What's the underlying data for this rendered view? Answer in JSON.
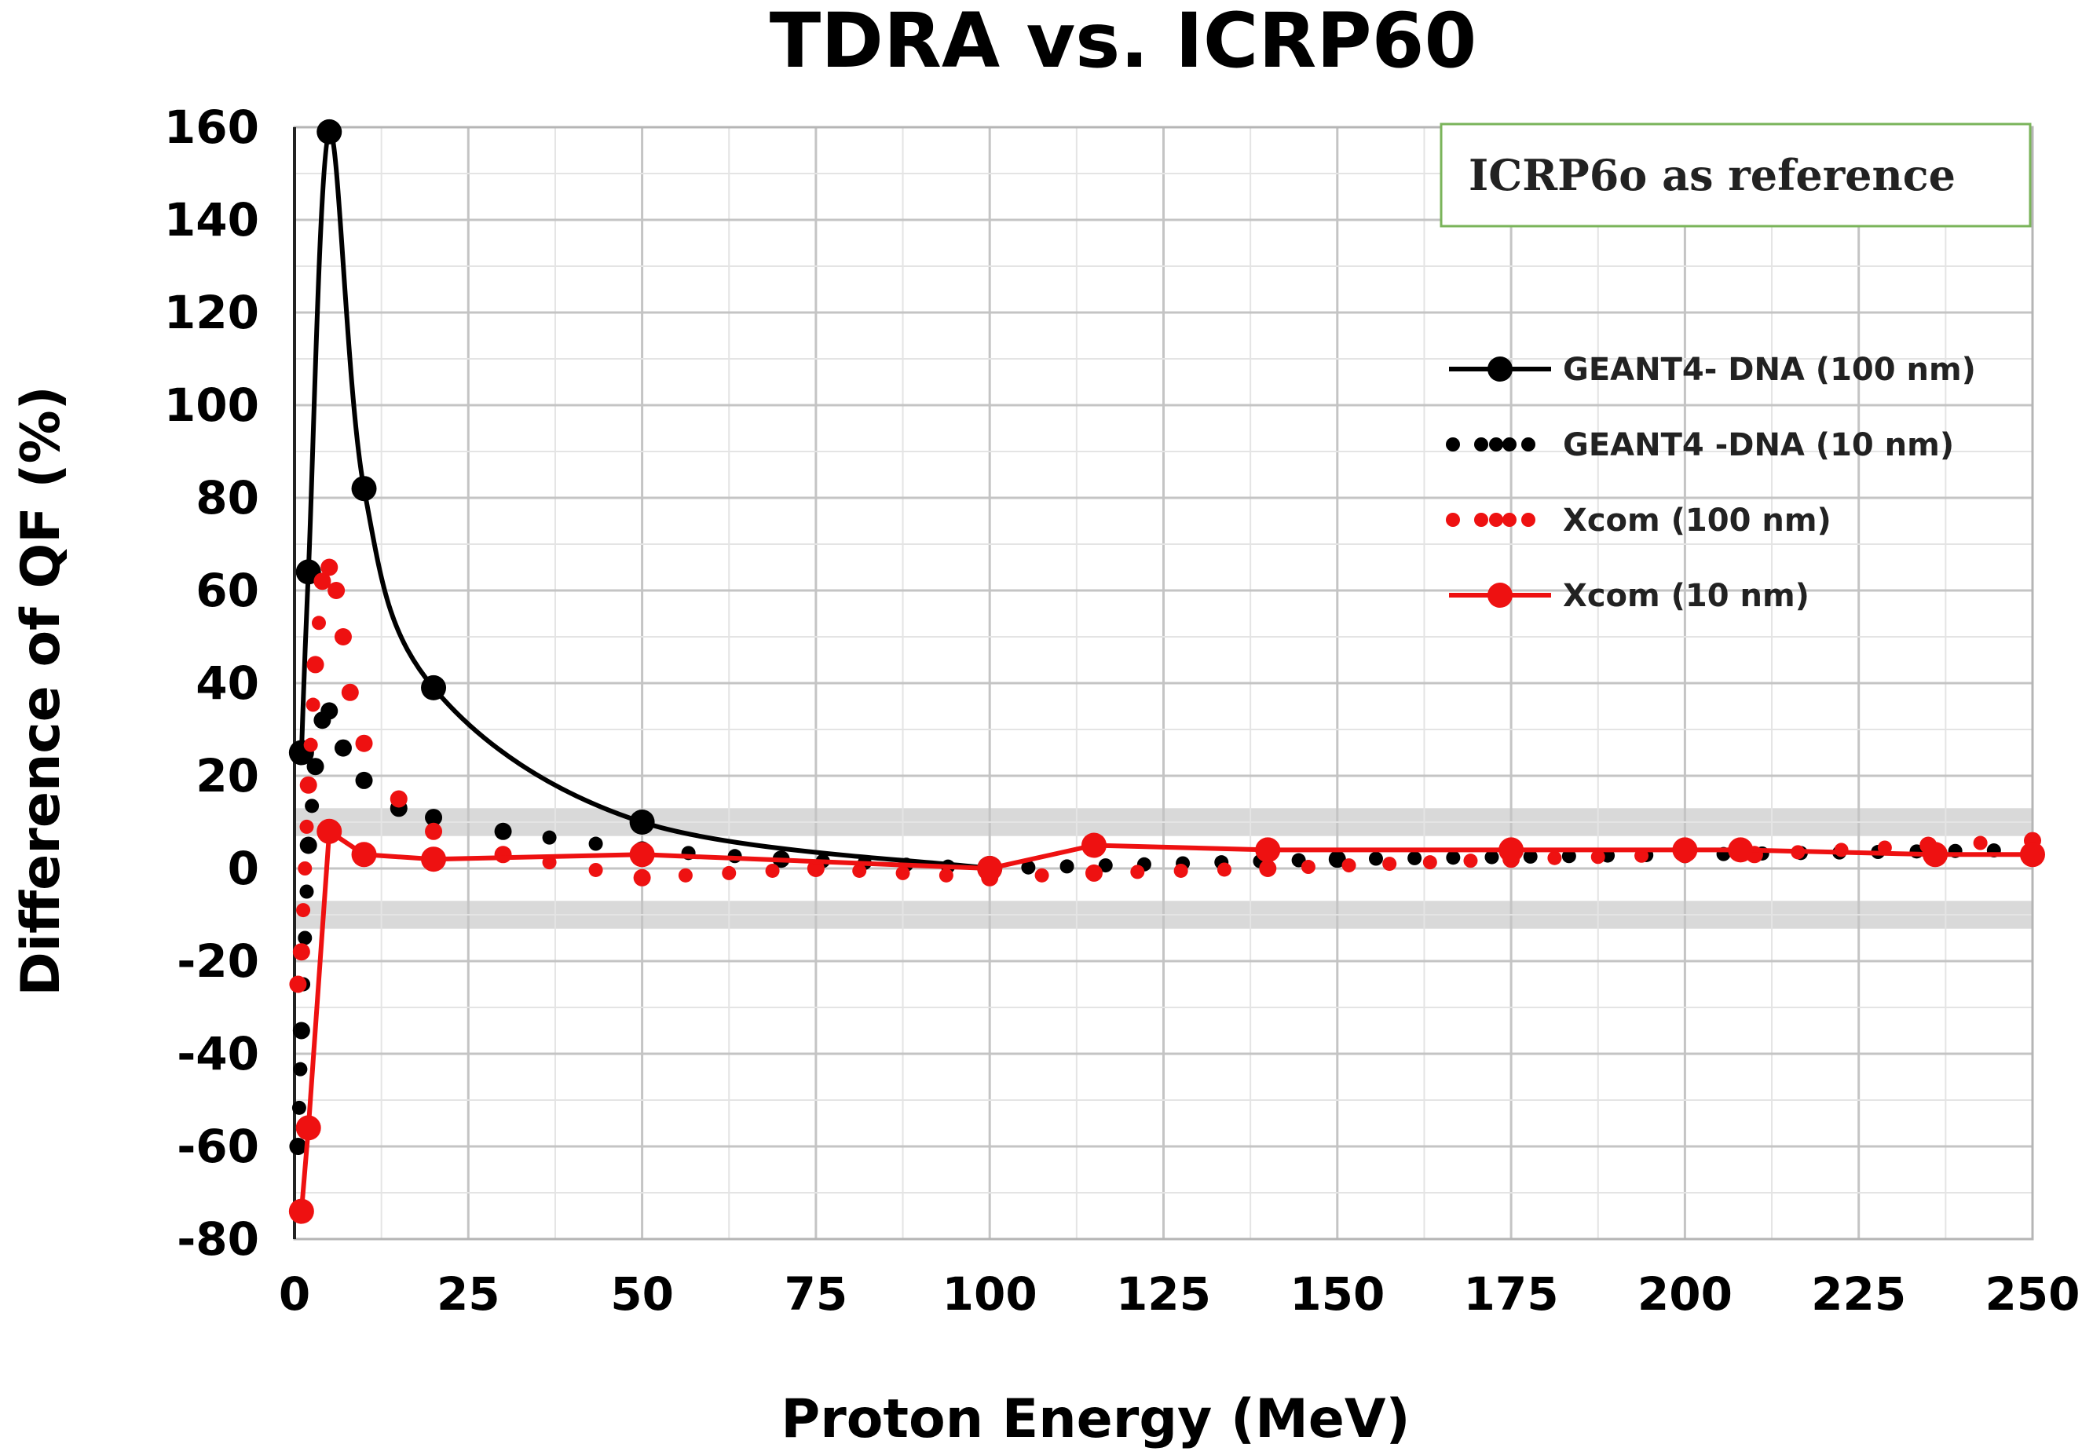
{
  "chart_data": {
    "type": "line",
    "title": "TDRA vs. ICRP60",
    "xlabel": "Proton Energy (MeV)",
    "ylabel": "Difference of QF (%)",
    "xlim": [
      0,
      250
    ],
    "ylim": [
      -80,
      160
    ],
    "xticks": [
      0,
      25,
      50,
      75,
      100,
      125,
      150,
      175,
      200,
      225,
      250
    ],
    "yticks": [
      -80,
      -60,
      -40,
      -20,
      0,
      20,
      40,
      60,
      80,
      100,
      120,
      140,
      160
    ],
    "x_minor_step": 12.5,
    "y_minor_step": 10,
    "grid": true,
    "tolerance_bands": [
      [
        7,
        13
      ],
      [
        -13,
        -7
      ]
    ],
    "annotation": "ICRP6o as reference",
    "legend_position": "right",
    "series": [
      {
        "name": "GEANT4- DNA (100 nm)",
        "style": "solid-marker",
        "color": "#000000",
        "x": [
          1,
          2,
          5,
          10,
          20,
          50,
          100
        ],
        "y": [
          25,
          64,
          159,
          82,
          39,
          10,
          0
        ]
      },
      {
        "name": "GEANT4 -DNA (10 nm)",
        "style": "dotted",
        "color": "#000000",
        "x": [
          0.5,
          1,
          2,
          3,
          4,
          5,
          7,
          10,
          15,
          20,
          30,
          50,
          70,
          100,
          150,
          200,
          250
        ],
        "y": [
          -60,
          -35,
          5,
          22,
          32,
          34,
          26,
          19,
          13,
          11,
          8,
          4,
          2,
          0,
          2,
          3,
          4
        ]
      },
      {
        "name": "Xcom (100 nm)",
        "style": "dotted",
        "color": "#ee1111",
        "x": [
          0.5,
          1,
          2,
          3,
          4,
          5,
          6,
          7,
          8,
          10,
          15,
          20,
          30,
          50,
          75,
          100,
          115,
          140,
          175,
          200,
          210,
          235,
          250
        ],
        "y": [
          -25,
          -18,
          18,
          44,
          62,
          65,
          60,
          50,
          38,
          27,
          15,
          8,
          3,
          -2,
          0,
          -2,
          -1,
          0,
          2,
          3,
          3,
          5,
          6
        ]
      },
      {
        "name": "Xcom (10 nm)",
        "style": "solid-marker",
        "color": "#ee1111",
        "x": [
          1,
          2,
          5,
          10,
          20,
          50,
          100,
          115,
          140,
          175,
          200,
          208,
          236,
          250
        ],
        "y": [
          -74,
          -56,
          8,
          3,
          2,
          3,
          0,
          5,
          4,
          4,
          4,
          4,
          3,
          3
        ]
      }
    ]
  }
}
